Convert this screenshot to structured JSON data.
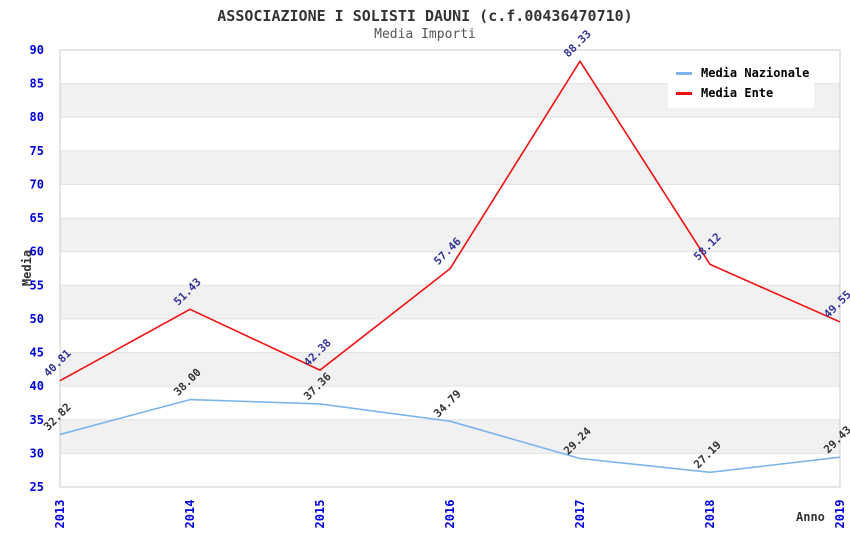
{
  "title": "ASSOCIAZIONE I SOLISTI DAUNI (c.f.00436470710)",
  "subtitle": "Media Importi",
  "chart_data": {
    "type": "line",
    "title": "ASSOCIAZIONE I SOLISTI DAUNI (c.f.00436470710)",
    "subtitle": "Media Importi",
    "xlabel": "Anno",
    "ylabel": "Media",
    "x": [
      2013,
      2014,
      2015,
      2016,
      2017,
      2018,
      2019
    ],
    "series": [
      {
        "name": "Media Nazionale",
        "color": "#7cb5ec",
        "label_color": "#333333",
        "values": [
          32.82,
          38.0,
          37.36,
          34.79,
          29.24,
          27.19,
          29.43
        ]
      },
      {
        "name": "Media Ente",
        "color": "#ee1111",
        "label_color": "#333399",
        "values": [
          40.81,
          51.43,
          42.38,
          57.46,
          88.33,
          58.12,
          49.55
        ]
      }
    ],
    "ylim": [
      25,
      90
    ],
    "ytick_step": 5,
    "yticks": [
      25,
      30,
      35,
      40,
      45,
      50,
      55,
      60,
      65,
      70,
      75,
      80,
      85,
      90
    ],
    "grid": "horizontal-bands",
    "legend_position": "top-right",
    "data_label_decimals": 2
  },
  "style_colors": {
    "tick_label": "#0000dd",
    "band_alt": "#f1f1f1",
    "gridline": "#e2e2e2",
    "plot_border": "#cccccc",
    "title": "#333333",
    "subtitle": "#555555"
  }
}
